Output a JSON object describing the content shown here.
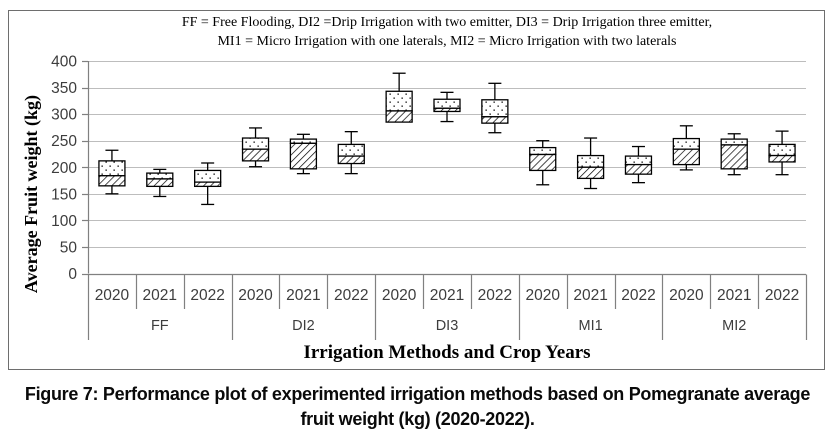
{
  "legend": {
    "line1": "FF = Free Flooding, DI2 =Drip Irrigation with two emitter, DI3 = Drip Irrigation three emitter,",
    "line2": "MI1 = Micro Irrigation with one laterals,  MI2 =  Micro Irrigation with two laterals"
  },
  "caption": {
    "line1": "Figure 7: Performance plot of experimented irrigation methods based on Pomegranate average",
    "line2": "fruit weight (kg)  (2020-2022)."
  },
  "chart_data": {
    "type": "boxplot",
    "title": "",
    "xlabel": "Irrigation Methods and Crop Years",
    "ylabel": "Average Fruit weight (kg)",
    "ylim": [
      0,
      400
    ],
    "ytick_step": 50,
    "grid": true,
    "legend_position": "top-center",
    "style": {
      "upper_box_fill": "sparse-dots",
      "lower_box_fill": "diagonal-hatch",
      "box_color": "#000000",
      "gridline_color": "#bdbdbd",
      "axis_color": "#808080",
      "label_color": "#3d3d3d"
    },
    "groups": [
      {
        "label": "FF",
        "boxes": [
          {
            "year": "2020",
            "min": 150,
            "q1": 165,
            "median": 184,
            "q3": 212,
            "max": 232
          },
          {
            "year": "2021",
            "min": 145,
            "q1": 164,
            "median": 178,
            "q3": 189,
            "max": 196
          },
          {
            "year": "2022",
            "min": 130,
            "q1": 164,
            "median": 172,
            "q3": 194,
            "max": 208
          }
        ]
      },
      {
        "label": "DI2",
        "boxes": [
          {
            "year": "2020",
            "min": 201,
            "q1": 212,
            "median": 234,
            "q3": 255,
            "max": 274
          },
          {
            "year": "2021",
            "min": 188,
            "q1": 197,
            "median": 245,
            "q3": 253,
            "max": 262
          },
          {
            "year": "2022",
            "min": 188,
            "q1": 207,
            "median": 221,
            "q3": 243,
            "max": 267
          }
        ]
      },
      {
        "label": "DI3",
        "boxes": [
          {
            "year": "2020",
            "min": 285,
            "q1": 285,
            "median": 306,
            "q3": 343,
            "max": 377
          },
          {
            "year": "2021",
            "min": 286,
            "q1": 305,
            "median": 311,
            "q3": 328,
            "max": 341
          },
          {
            "year": "2022",
            "min": 265,
            "q1": 283,
            "median": 295,
            "q3": 327,
            "max": 358
          }
        ]
      },
      {
        "label": "MI1",
        "boxes": [
          {
            "year": "2020",
            "min": 167,
            "q1": 194,
            "median": 224,
            "q3": 237,
            "max": 250
          },
          {
            "year": "2021",
            "min": 160,
            "q1": 179,
            "median": 200,
            "q3": 222,
            "max": 255
          },
          {
            "year": "2022",
            "min": 171,
            "q1": 187,
            "median": 205,
            "q3": 221,
            "max": 239
          }
        ]
      },
      {
        "label": "MI2",
        "boxes": [
          {
            "year": "2020",
            "min": 195,
            "q1": 205,
            "median": 234,
            "q3": 254,
            "max": 278
          },
          {
            "year": "2021",
            "min": 186,
            "q1": 197,
            "median": 242,
            "q3": 253,
            "max": 263
          },
          {
            "year": "2022",
            "min": 186,
            "q1": 210,
            "median": 222,
            "q3": 243,
            "max": 268
          }
        ]
      }
    ]
  }
}
